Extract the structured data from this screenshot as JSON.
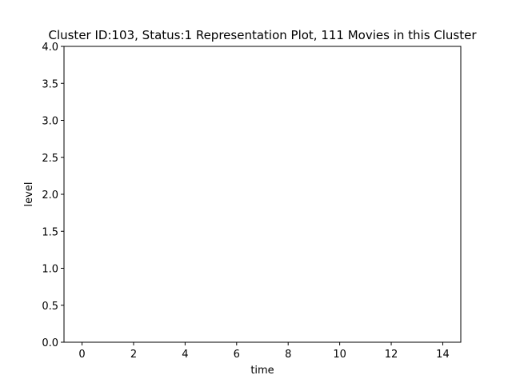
{
  "chart_data": {
    "type": "line",
    "title": "Cluster ID:103, Status:1 Representation Plot, 111 Movies in this Cluster",
    "xlabel": "time",
    "ylabel": "level",
    "xlim": [
      -0.7,
      14.7
    ],
    "ylim": [
      0,
      4
    ],
    "xticks": [
      0,
      2,
      4,
      6,
      8,
      10,
      12,
      14
    ],
    "yticks": [
      0,
      0.5,
      1,
      1.5,
      2,
      2.5,
      3,
      3.5,
      4
    ],
    "xtick_labels": [
      "0",
      "2",
      "4",
      "6",
      "8",
      "10",
      "12",
      "14"
    ],
    "ytick_labels": [
      "0.0",
      "0.5",
      "1.0",
      "1.5",
      "2.0",
      "2.5",
      "3.0",
      "3.5",
      "4.0"
    ],
    "grid": false,
    "series": []
  }
}
